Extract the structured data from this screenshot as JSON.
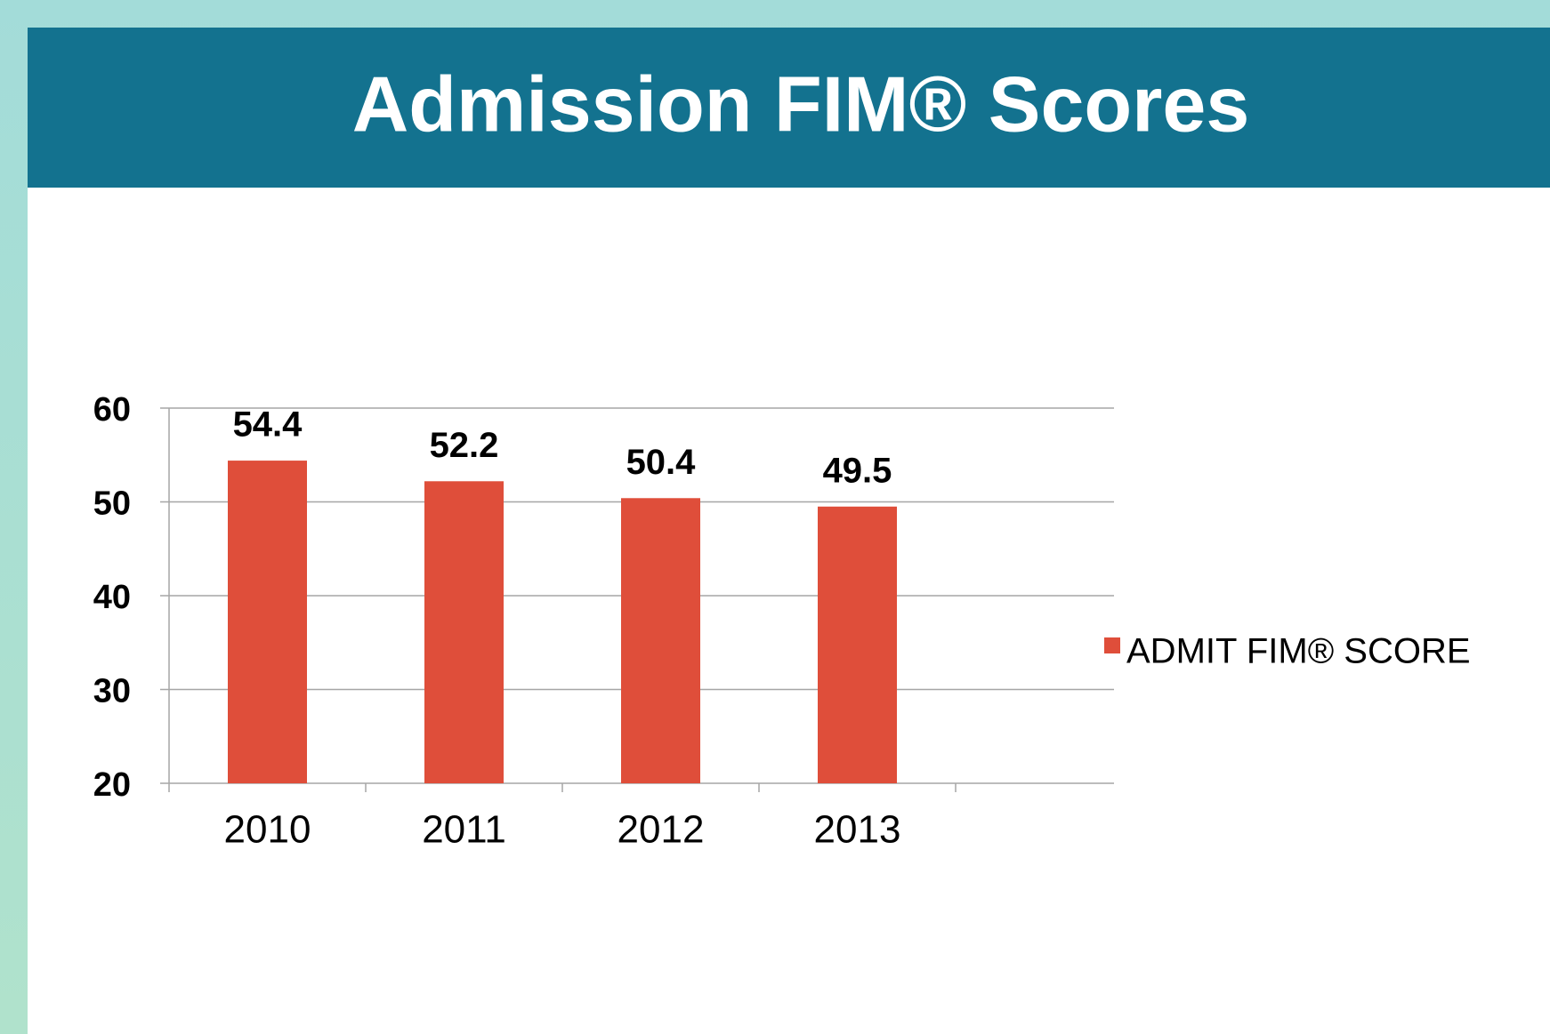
{
  "chart_data": {
    "type": "bar",
    "title": "Admission FIM® Scores",
    "categories": [
      "2010",
      "2011",
      "2012",
      "2013"
    ],
    "series": [
      {
        "name": "ADMIT FIM® SCORE",
        "color": "#df4e3a",
        "values": [
          54.4,
          52.2,
          50.4,
          49.5
        ]
      }
    ],
    "ylim": [
      20,
      60
    ],
    "yticks": [
      20,
      30,
      40,
      50,
      60
    ],
    "grid": true,
    "legend": "right"
  }
}
